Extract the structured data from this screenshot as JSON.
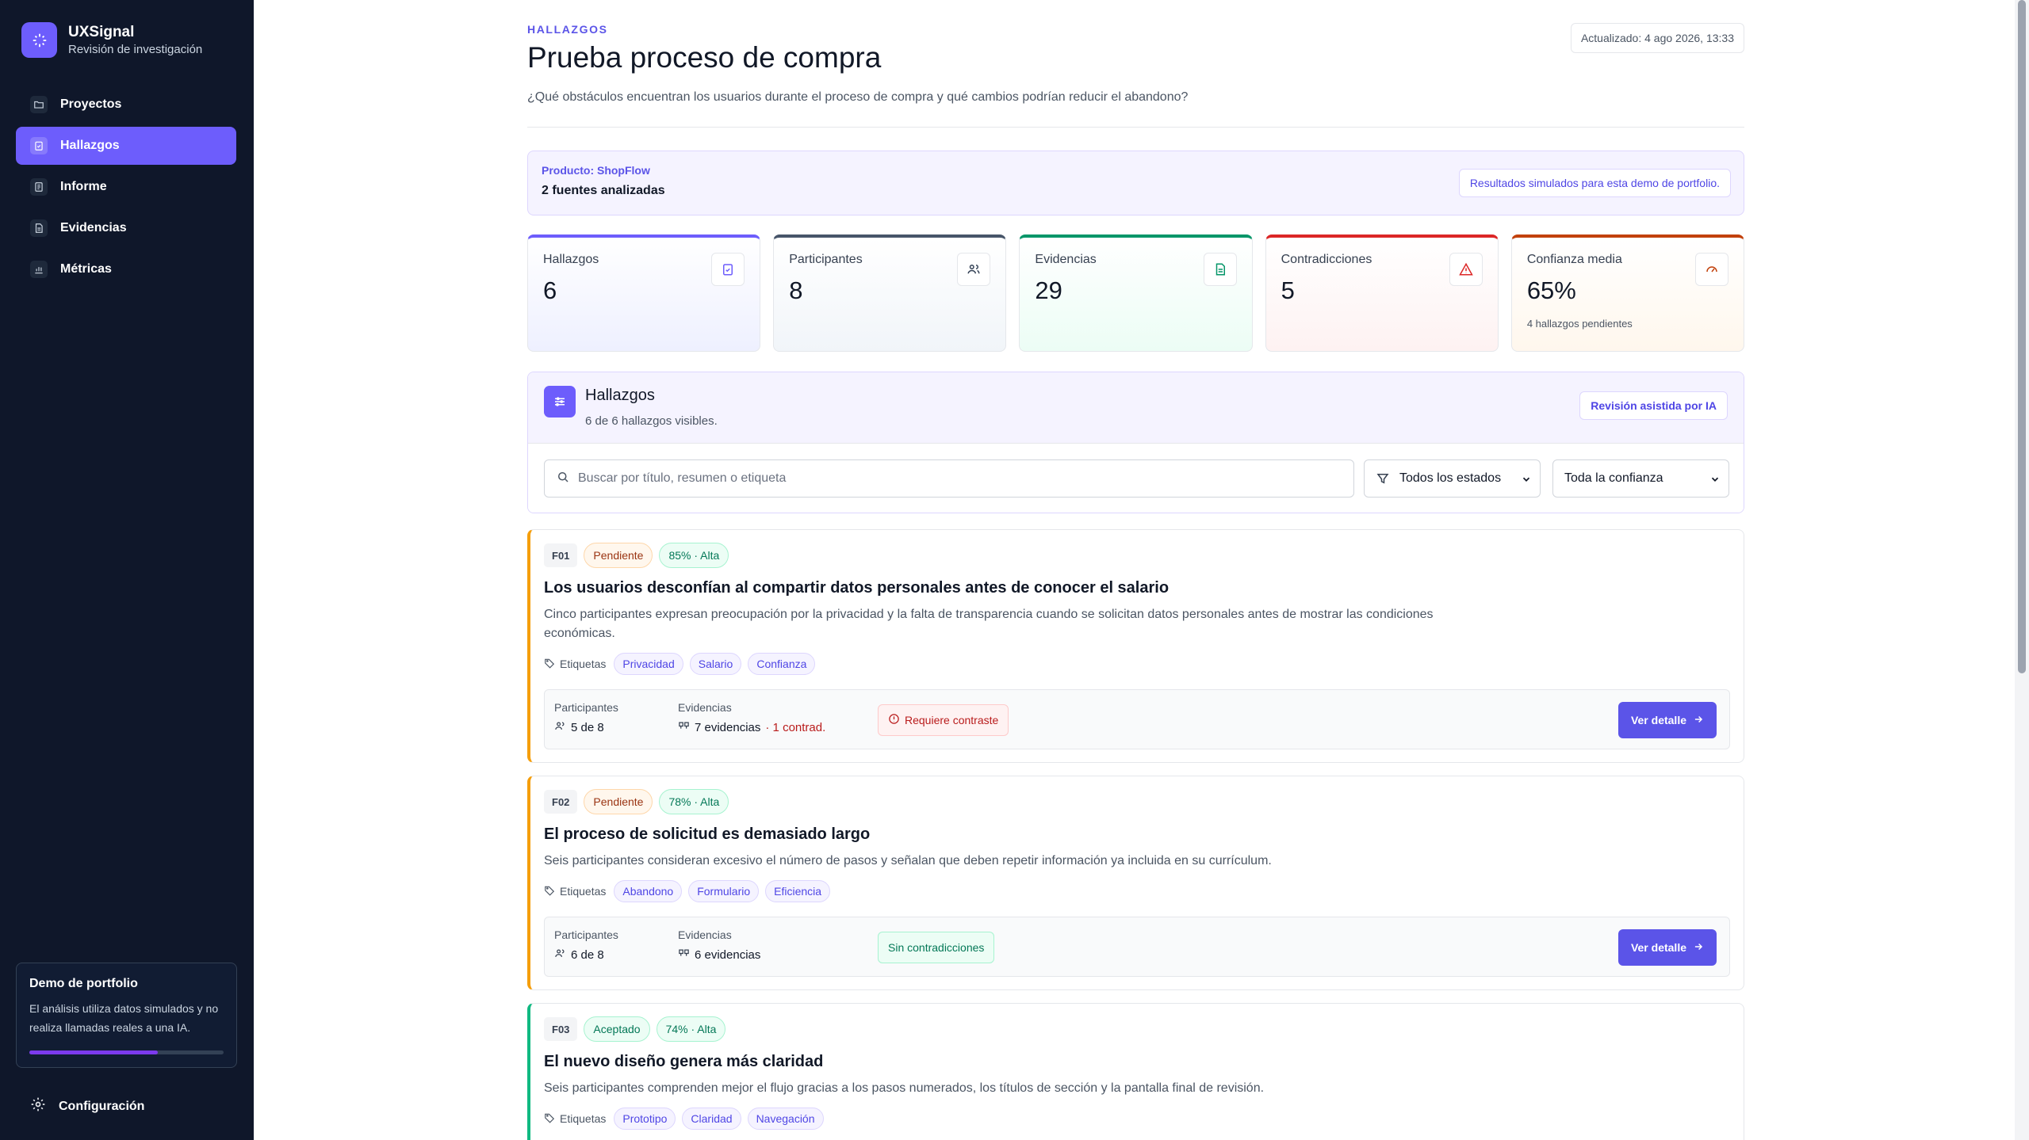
{
  "app": {
    "name": "UXSignal",
    "subtitle": "Revisión de investigación"
  },
  "sidebar": {
    "items": [
      {
        "label": "Proyectos",
        "icon": "folder-icon",
        "active": false
      },
      {
        "label": "Hallazgos",
        "icon": "clipboard-check-icon",
        "active": true
      },
      {
        "label": "Informe",
        "icon": "report-icon",
        "active": false
      },
      {
        "label": "Evidencias",
        "icon": "file-text-icon",
        "active": false
      },
      {
        "label": "Métricas",
        "icon": "bar-chart-icon",
        "active": false
      }
    ],
    "demo": {
      "title": "Demo de portfolio",
      "text": "El análisis utiliza datos simulados y no realiza llamadas reales a una IA."
    },
    "settings_label": "Configuración"
  },
  "header": {
    "eyebrow": "HALLAZGOS",
    "title": "Prueba proceso de compra",
    "description": "¿Qué obstáculos encuentran los usuarios durante el proceso de compra y qué cambios podrían reducir el abandono?",
    "updated": "Actualizado: 4 ago 2026, 13:33"
  },
  "product": {
    "name": "Producto: ShopFlow",
    "sources": "2 fuentes analizadas",
    "badge": "Resultados simulados para esta demo de portfolio."
  },
  "stats": [
    {
      "label": "Hallazgos",
      "value": "6",
      "icon": "clipboard-icon",
      "accent": "#6d5dfc"
    },
    {
      "label": "Participantes",
      "value": "8",
      "icon": "users-icon",
      "accent": "#475569"
    },
    {
      "label": "Evidencias",
      "value": "29",
      "icon": "file-icon",
      "accent": "#059669"
    },
    {
      "label": "Contradicciones",
      "value": "5",
      "icon": "alert-triangle-icon",
      "accent": "#dc2626"
    },
    {
      "label": "Confianza media",
      "value": "65%",
      "note": "4 hallazgos pendientes",
      "icon": "gauge-icon",
      "accent": "#c2410c"
    }
  ],
  "findings_panel": {
    "title": "Hallazgos",
    "subtitle": "6 de 6 hallazgos visibles.",
    "ai_button": "Revisión asistida por IA",
    "search_placeholder": "Buscar por título, resumen o etiqueta",
    "status_filter": "Todos los estados",
    "confidence_filter": "Toda la confianza"
  },
  "labels": {
    "tags": "Etiquetas",
    "participants": "Participantes",
    "evidence": "Evidencias",
    "detail_button": "Ver detalle"
  },
  "findings": [
    {
      "id": "F01",
      "status": "Pendiente",
      "confidence": "85% · Alta",
      "title": "Los usuarios desconfían al compartir datos personales antes de conocer el salario",
      "summary": "Cinco participantes expresan preocupación por la privacidad y la falta de transparencia cuando se solicitan datos personales antes de mostrar las condiciones económicas.",
      "tags": [
        "Privacidad",
        "Salario",
        "Confianza"
      ],
      "participants": "5 de 8",
      "evidence": "7 evidencias",
      "contradictions": "· 1 contrad.",
      "flag": "Requiere contraste"
    },
    {
      "id": "F02",
      "status": "Pendiente",
      "confidence": "78% · Alta",
      "title": "El proceso de solicitud es demasiado largo",
      "summary": "Seis participantes consideran excesivo el número de pasos y señalan que deben repetir información ya incluida en su currículum.",
      "tags": [
        "Abandono",
        "Formulario",
        "Eficiencia"
      ],
      "participants": "6 de 8",
      "evidence": "6 evidencias",
      "contradictions": "",
      "flag": "Sin contradicciones"
    },
    {
      "id": "F03",
      "status": "Aceptado",
      "confidence": "74% · Alta",
      "title": "El nuevo diseño genera más claridad",
      "summary": "Seis participantes comprenden mejor el flujo gracias a los pasos numerados, los títulos de sección y la pantalla final de revisión.",
      "tags": [
        "Prototipo",
        "Claridad",
        "Navegación"
      ]
    }
  ]
}
